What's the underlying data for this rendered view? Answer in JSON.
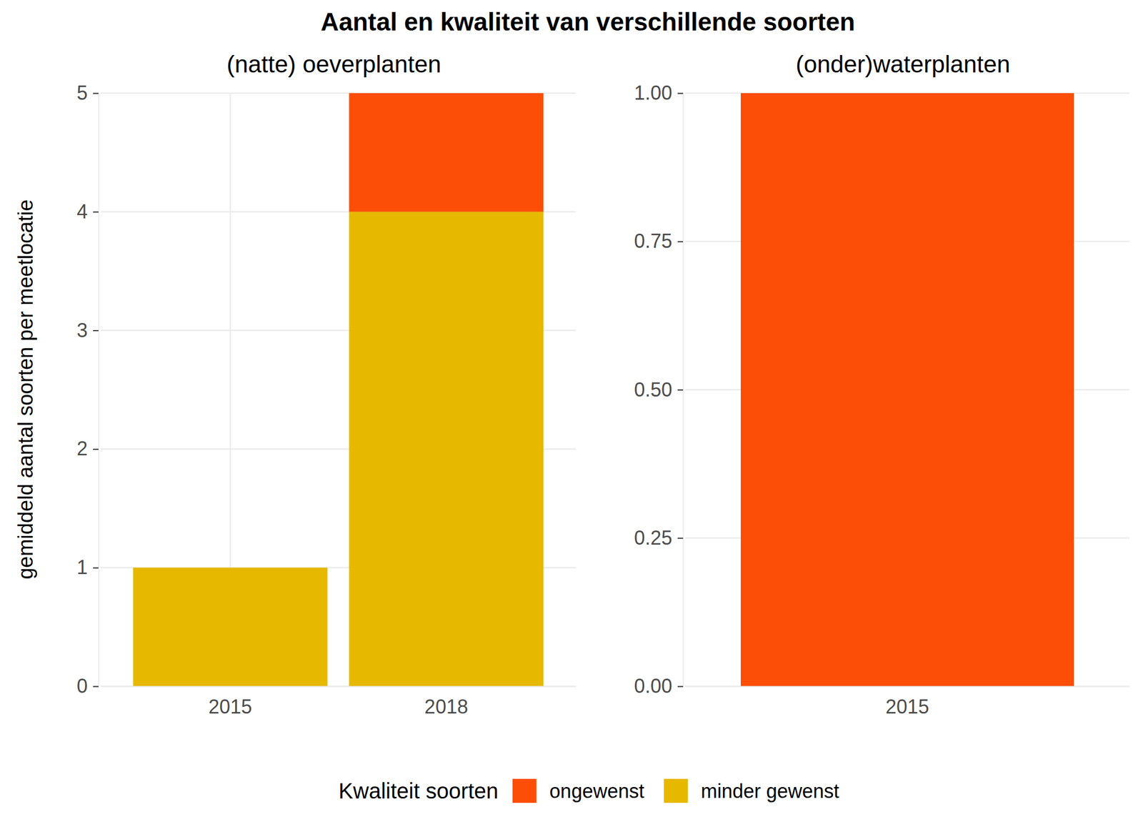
{
  "title": "Aantal en kwaliteit van verschillende soorten",
  "y_label": "gemiddeld aantal soorten per meetlocatie",
  "legend_title": "Kwaliteit soorten",
  "chart_data": [
    {
      "type": "bar",
      "subtitle": "(natte) oeverplanten",
      "categories": [
        "2015",
        "2018"
      ],
      "stacked": true,
      "grid": true,
      "legend": "bottom",
      "series": [
        {
          "name": "minder gewenst",
          "color": "#E7B800",
          "values": [
            1,
            4
          ]
        },
        {
          "name": "ongewenst",
          "color": "#FC4E07",
          "values": [
            null,
            1
          ]
        }
      ],
      "ylim": [
        0,
        5
      ],
      "yticks": [
        0,
        1,
        2,
        3,
        4,
        5
      ]
    },
    {
      "type": "bar",
      "subtitle": "(onder)waterplanten",
      "categories": [
        "2015"
      ],
      "stacked": true,
      "grid": true,
      "series": [
        {
          "color": "#FC4E07",
          "values": [
            1
          ]
        }
      ],
      "ylim": [
        0,
        1
      ],
      "yticks": [
        {
          "value": 0,
          "label": "0.00"
        },
        {
          "value": 0.25,
          "label": "0.25"
        },
        {
          "value": 0.5,
          "label": "0.50"
        },
        {
          "value": 0.75,
          "label": "0.75"
        },
        {
          "value": 1,
          "label": "1.00"
        }
      ]
    }
  ]
}
